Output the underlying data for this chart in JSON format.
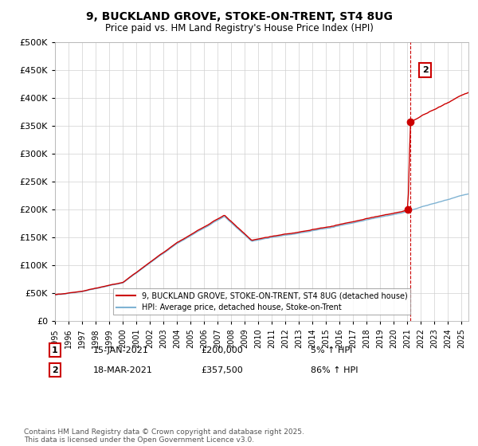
{
  "title": "9, BUCKLAND GROVE, STOKE-ON-TRENT, ST4 8UG",
  "subtitle": "Price paid vs. HM Land Registry's House Price Index (HPI)",
  "legend_line1": "9, BUCKLAND GROVE, STOKE-ON-TRENT, ST4 8UG (detached house)",
  "legend_line2": "HPI: Average price, detached house, Stoke-on-Trent",
  "annotation1_date": "15-JAN-2021",
  "annotation1_price": "£200,000",
  "annotation1_hpi": "5% ↑ HPI",
  "annotation2_date": "18-MAR-2021",
  "annotation2_price": "£357,500",
  "annotation2_hpi": "86% ↑ HPI",
  "footer": "Contains HM Land Registry data © Crown copyright and database right 2025.\nThis data is licensed under the Open Government Licence v3.0.",
  "hpi_color": "#7fb3d3",
  "sale_color": "#cc0000",
  "vline_color": "#cc0000",
  "ylim": [
    0,
    500000
  ],
  "yticks": [
    0,
    50000,
    100000,
    150000,
    200000,
    250000,
    300000,
    350000,
    400000,
    450000,
    500000
  ],
  "year_start": 1995,
  "year_end": 2025,
  "sale1_year": 2021.04,
  "sale1_price": 200000,
  "sale2_year": 2021.21,
  "sale2_price": 357500
}
